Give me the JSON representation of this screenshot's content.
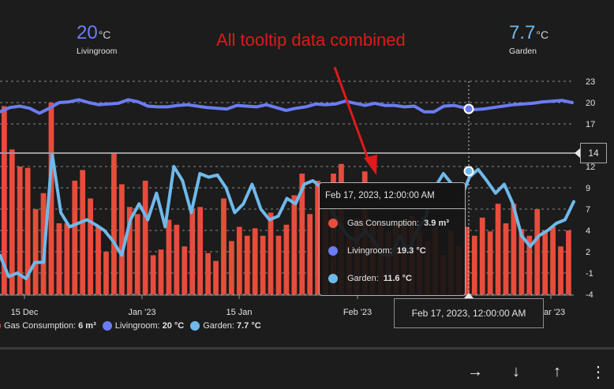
{
  "stats": [
    {
      "value": "20",
      "unit": "°C",
      "name": "Livingroom",
      "color": "#6b7cf5"
    },
    {
      "value": "7.7",
      "unit": "°C",
      "name": "Garden",
      "color": "#6fb9ea"
    }
  ],
  "annotation": "All tooltip data combined",
  "crosshair_label": "14",
  "tooltip": {
    "title": "Feb 17, 2023, 12:00:00 AM",
    "rows": [
      {
        "label": "Gas Consumption:",
        "value": "3.9 m³",
        "color": "#e74c3c"
      },
      {
        "label": "Livingroom:",
        "value": "19.3 °C",
        "color": "#6b7cf5"
      },
      {
        "label": "Garden:",
        "value": "11.6 °C",
        "color": "#6fb9ea"
      }
    ]
  },
  "x_tooltip": "Feb 17, 2023, 12:00:00 AM",
  "legend": [
    {
      "label": "Gas Consumption:",
      "value": "6 m³",
      "color": "#e74c3c"
    },
    {
      "label": "Livingroom:",
      "value": "20 °C",
      "color": "#6b7cf5"
    },
    {
      "label": "Garden:",
      "value": "7.7 °C",
      "color": "#6fb9ea"
    }
  ],
  "toolbar": {
    "forward_icon": "→",
    "down_icon": "↓",
    "up_icon": "↑",
    "more_icon": "⋮"
  },
  "colors": {
    "gas": "#e74c3c",
    "livingroom": "#6b7cf5",
    "garden": "#6fb9ea",
    "background": "#1c1c1c",
    "annotation": "#e0191b"
  },
  "chart_data": {
    "type": "bar+line",
    "title": "",
    "xlabel": "",
    "ylabel": "",
    "y_ticks": [
      23,
      20,
      17,
      12,
      9,
      7,
      4,
      2,
      -1,
      -4
    ],
    "ylim": [
      -4,
      23
    ],
    "x_ticks": [
      "15 Dec",
      "Jan '23",
      "15 Jan",
      "Feb '23",
      "Mar '23"
    ],
    "grid": true,
    "legend_position": "bottom",
    "crosshair_y": 14,
    "highlight_x": "Feb 17, 2023",
    "series": [
      {
        "name": "Gas Consumption",
        "type": "bar",
        "unit": "m³",
        "values": [
          19.5,
          14,
          12,
          11.8,
          7,
          8.5,
          20,
          5,
          5,
          10,
          11.5,
          8,
          4.5,
          2,
          13.5,
          9.5,
          7.2,
          6.3,
          10,
          1.5,
          2.2,
          5.5,
          4.8,
          2.5,
          7,
          7.2,
          1.8,
          0.7,
          8,
          3,
          4.5,
          3.5,
          4.3,
          3.5,
          6.5,
          3.5,
          4.8,
          8.3,
          11,
          6.3,
          10,
          7,
          11,
          12.3,
          3.2,
          5.7,
          11.3,
          5.4,
          5,
          3.9,
          5,
          5.5,
          6,
          3.9,
          3,
          4.5,
          1.5,
          4,
          2.5,
          4.5,
          3.5,
          5.8,
          3.9,
          7.5,
          5,
          7.5,
          4.2,
          3.5,
          7,
          4,
          4.5,
          2.5,
          4
        ],
        "color": "#e74c3c"
      },
      {
        "name": "Livingroom",
        "type": "line",
        "unit": "°C",
        "values": [
          18.7,
          19.3,
          19.5,
          19.2,
          18.5,
          19.2,
          20.0,
          20.1,
          20.4,
          20.0,
          19.7,
          19.8,
          19.9,
          20.4,
          20.1,
          19.5,
          19.4,
          19.4,
          19.6,
          19.7,
          19.5,
          19.3,
          19.2,
          19.1,
          19.6,
          19.5,
          19.4,
          19.7,
          19.3,
          18.9,
          19.2,
          19.4,
          19.8,
          19.7,
          19.8,
          20.2,
          19.9,
          19.6,
          19.9,
          19.6,
          19.6,
          19.4,
          19.5,
          18.7,
          18.7,
          19.5,
          19.6,
          19.3,
          19.0,
          19.1,
          19.3,
          19.5,
          19.7,
          19.8,
          19.9,
          20.1,
          20.2,
          20.3,
          20.0
        ],
        "color": "#6b7cf5"
      },
      {
        "name": "Garden",
        "type": "line",
        "unit": "°C",
        "values": [
          1.5,
          -1.5,
          -1.0,
          -1.8,
          0.5,
          0.5,
          13.5,
          6.5,
          4.5,
          5.0,
          5.5,
          4.8,
          4.0,
          3.0,
          1.5,
          5.5,
          7.5,
          5.5,
          8.5,
          4.5,
          12.0,
          10.0,
          6.5,
          11.0,
          10.5,
          10.8,
          9.0,
          6.5,
          7.5,
          9.5,
          7.0,
          5.5,
          6.0,
          8.0,
          7.5,
          9.5,
          10.0,
          9.0,
          7.0,
          5.0,
          3.5,
          3.0,
          4.0,
          3.0,
          1.5,
          1.5,
          3.5,
          2.0,
          4.0,
          6.0,
          9.0,
          11.0,
          9.5,
          8.0,
          10.5,
          11.6,
          10.0,
          8.5,
          9.5,
          7.5,
          3.5,
          2.5,
          3.5,
          4.0,
          5.0,
          5.5,
          7.7
        ],
        "color": "#6fb9ea"
      }
    ]
  }
}
